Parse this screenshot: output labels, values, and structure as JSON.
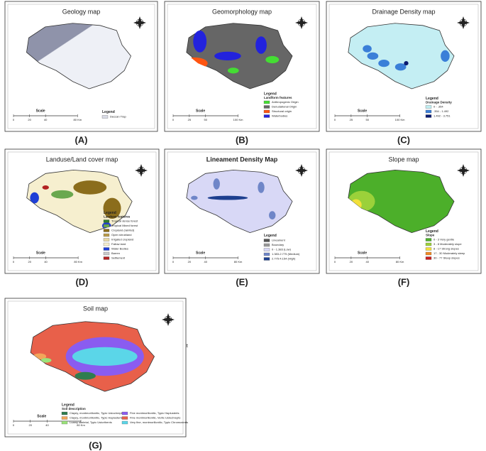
{
  "panels": [
    {
      "label": "(A)",
      "title": "Geology map",
      "map": "geology",
      "legend_title": "Legend",
      "legend_items": [
        {
          "text": "Deccan Trap",
          "color": "#d9dbe6"
        }
      ],
      "scale": "Scale",
      "scale_ticks": [
        "0",
        "20",
        "40",
        "80 Km"
      ]
    },
    {
      "label": "(B)",
      "title": "Geomorphology map",
      "map": "geomorph",
      "legend_title": "Legend",
      "legend_subtitle": "Landform features",
      "legend_items": [
        {
          "text": "Anthropogenic Origin",
          "color": "#44dd33"
        },
        {
          "text": "Denudational Origin",
          "color": "#666666"
        },
        {
          "text": "Structural origin",
          "color": "#ff5511"
        },
        {
          "text": "Waterbodies",
          "color": "#2222dd"
        }
      ],
      "scale": "Scale",
      "scale_ticks": [
        "0",
        "25",
        "50",
        "100 Km"
      ]
    },
    {
      "label": "(C)",
      "title": "Drainage Density map",
      "map": "drainage",
      "legend_title": "Legend",
      "legend_subtitle": "Drainage Density",
      "legend_items": [
        {
          "text": "0 - .354",
          "color": "#bfeef2"
        },
        {
          "text": ".354 - 1.492",
          "color": "#3a7fd8"
        },
        {
          "text": "1.492 - 3.751",
          "color": "#0a1a70"
        }
      ],
      "scale": "Scale",
      "scale_ticks": [
        "0",
        "25",
        "50",
        "100 Km"
      ]
    },
    {
      "label": "(D)",
      "title": "Landuse/Land cover map",
      "map": "landuse",
      "legend_title": "Legend",
      "legend_subtitle": "Landuse features",
      "legend_items": [
        {
          "text": "Tropical dense forest",
          "color": "#2f7d2f"
        },
        {
          "text": "Tropical Mixed forest",
          "color": "#6aa84f"
        },
        {
          "text": "Cropland (rainfed)",
          "color": "#8b6d1c"
        },
        {
          "text": "Open shrubland",
          "color": "#b89a4a"
        },
        {
          "text": "Irrigated cropland",
          "color": "#e7d9a6"
        },
        {
          "text": "Fallow land",
          "color": "#f6efcf"
        },
        {
          "text": "Water Bodies",
          "color": "#1f3fd6"
        },
        {
          "text": "Barren",
          "color": "#c9c9c9"
        },
        {
          "text": "Settlement",
          "color": "#b22222"
        }
      ],
      "scale": "Scale",
      "scale_ticks": [
        "0",
        "20",
        "40",
        "80 Km"
      ]
    },
    {
      "label": "(E)",
      "title": "Lineament Density Map",
      "map": "lineament",
      "legend_title": "Legend",
      "legend_items": [
        {
          "text": "Lineament",
          "color": "#555555"
        },
        {
          "text": "Boundary",
          "color": "#999999"
        },
        {
          "text": "0 - 1.383 (Low)",
          "color": "#d8d8f6"
        },
        {
          "text": "1.383-2.775 (Medium)",
          "color": "#6f86c8"
        },
        {
          "text": "2.775-4.154 (High)",
          "color": "#1d3f8f"
        }
      ],
      "scale": "Scale",
      "scale_ticks": [
        "0",
        "20",
        "40",
        "80 Km"
      ]
    },
    {
      "label": "(F)",
      "title": "Slope map",
      "map": "slope",
      "legend_title": "Legend",
      "legend_subtitle": "Slope",
      "legend_items": [
        {
          "text": "0 - 3 Very gentle",
          "color": "#4caf2a"
        },
        {
          "text": "3 - 8 Moderately slope",
          "color": "#9bd13a"
        },
        {
          "text": "8 - 17 Strong slopes",
          "color": "#f2e03a"
        },
        {
          "text": "17 - 30 Moderately steep",
          "color": "#f08a24"
        },
        {
          "text": "30 - 77 Steep slopes",
          "color": "#c81e1e"
        }
      ],
      "scale": "Scale",
      "scale_ticks": [
        "0",
        "20",
        "40",
        "80 Km"
      ]
    },
    {
      "label": "(G)",
      "title": "Soil map",
      "map": "soil",
      "legend_title": "Legend",
      "legend_subtitle": "Soil description",
      "legend_items": [
        {
          "text": "Clayey, montmorillonitic, Typic Ustochrepts",
          "color": "#2e7d4f"
        },
        {
          "text": "Clayey, montmorillonitic, Typic Haplusterts",
          "color": "#f2a65a"
        },
        {
          "text": "Loamy skeletal, Typic Ustorthents",
          "color": "#9be37a"
        },
        {
          "text": "Fine montmorillonitic, Typic Haplusterts",
          "color": "#8a5cf0"
        },
        {
          "text": "Fine montmorillonitic, Vertic Ustochrepts",
          "color": "#e8604a"
        },
        {
          "text": "Very fine, montmorillonitic, Typic Chromusterts",
          "color": "#5bd6e8"
        }
      ],
      "scale": "Scale",
      "scale_ticks": [
        "0",
        "20",
        "40",
        "80 Km"
      ]
    }
  ],
  "stray_text": "Text"
}
